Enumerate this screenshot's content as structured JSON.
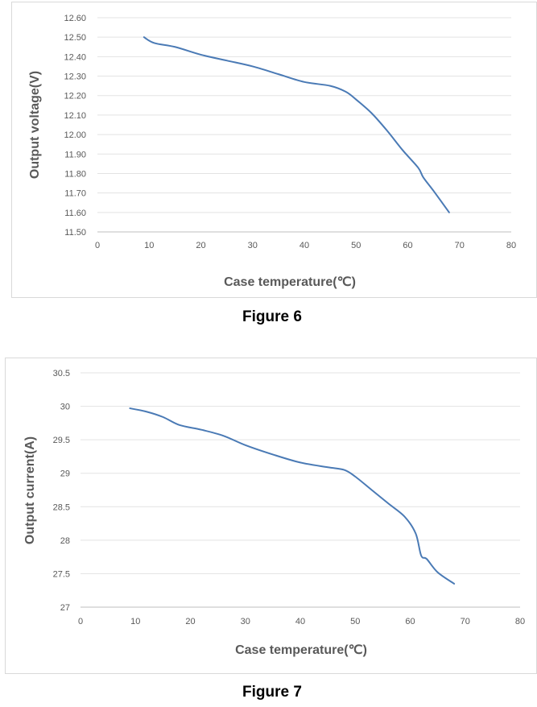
{
  "figures": [
    {
      "caption": "Figure 6"
    },
    {
      "caption": "Figure 7"
    }
  ],
  "chart_data": [
    {
      "type": "line",
      "title": "",
      "xlabel": "Case temperature(℃)",
      "ylabel": "Output voltage(V)",
      "xlim": [
        0,
        80
      ],
      "ylim": [
        11.5,
        12.6
      ],
      "x_ticks": [
        "0",
        "10",
        "20",
        "30",
        "40",
        "50",
        "60",
        "70",
        "80"
      ],
      "y_ticks": [
        "11.50",
        "11.60",
        "11.70",
        "11.80",
        "11.90",
        "12.00",
        "12.10",
        "12.20",
        "12.30",
        "12.40",
        "12.50",
        "12.60"
      ],
      "grid": true,
      "line_color": "#4a7ab5",
      "series": [
        {
          "name": "Output voltage",
          "x": [
            9,
            11,
            15,
            20,
            25,
            30,
            35,
            40,
            45,
            48,
            50,
            53,
            56,
            59,
            62,
            63,
            65,
            68
          ],
          "y": [
            12.5,
            12.47,
            12.45,
            12.41,
            12.38,
            12.35,
            12.31,
            12.27,
            12.25,
            12.22,
            12.18,
            12.11,
            12.02,
            11.92,
            11.83,
            11.78,
            11.71,
            11.6
          ]
        }
      ]
    },
    {
      "type": "line",
      "title": "",
      "xlabel": "Case temperature(℃)",
      "ylabel": "Output current(A)",
      "xlim": [
        0,
        80
      ],
      "ylim": [
        27,
        30.5
      ],
      "x_ticks": [
        "0",
        "10",
        "20",
        "30",
        "40",
        "50",
        "60",
        "70",
        "80"
      ],
      "y_ticks": [
        "27",
        "27.5",
        "28",
        "28.5",
        "29",
        "29.5",
        "30",
        "30.5"
      ],
      "grid": true,
      "line_color": "#4a7ab5",
      "series": [
        {
          "name": "Output current",
          "x": [
            9,
            12,
            15,
            18,
            22,
            26,
            30,
            35,
            40,
            45,
            48,
            50,
            53,
            56,
            59,
            61,
            62,
            63,
            65,
            68
          ],
          "y": [
            29.97,
            29.92,
            29.84,
            29.72,
            29.65,
            29.56,
            29.42,
            29.28,
            29.16,
            29.09,
            29.05,
            28.95,
            28.75,
            28.55,
            28.35,
            28.1,
            27.77,
            27.72,
            27.52,
            27.35
          ]
        }
      ]
    }
  ]
}
